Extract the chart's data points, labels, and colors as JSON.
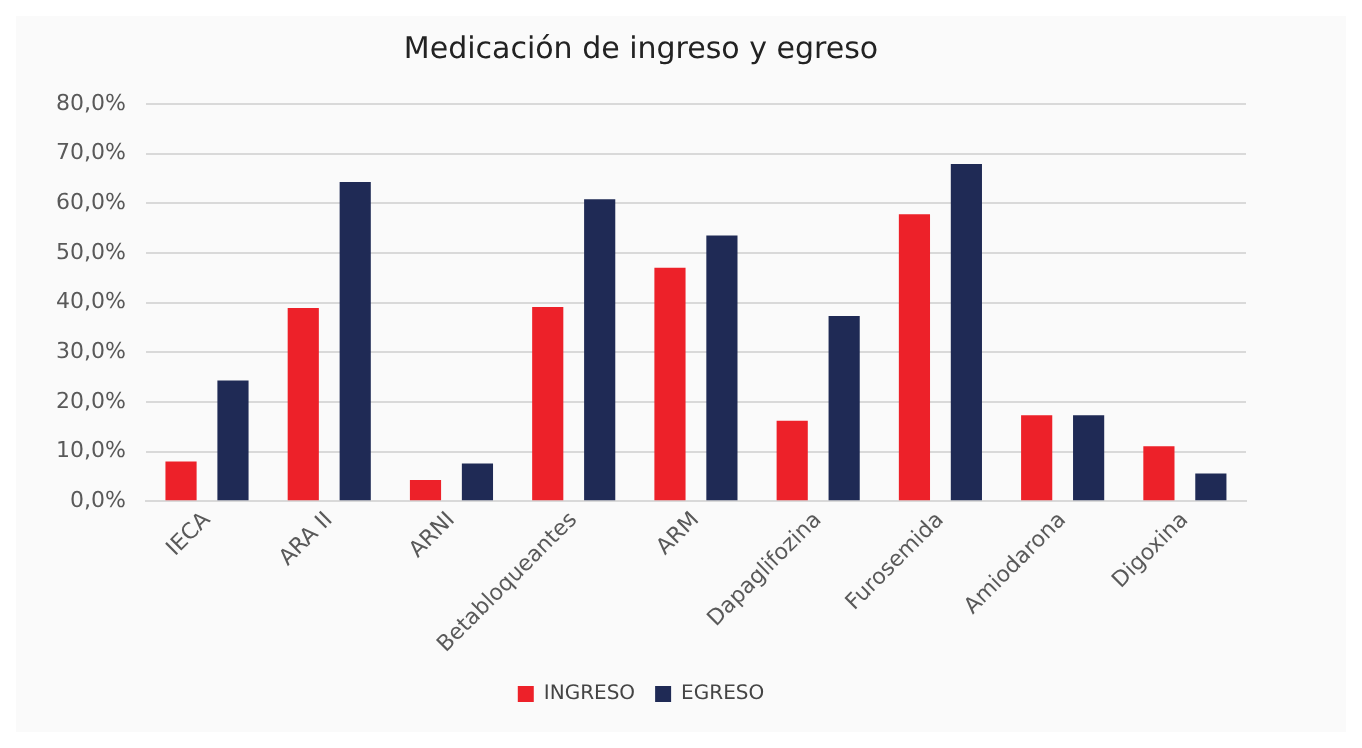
{
  "chart_data": {
    "type": "bar",
    "title": "Medicación de ingreso y egreso",
    "categories": [
      "IECA",
      "ARA II",
      "ARNI",
      "Betabloqueantes",
      "ARM",
      "Dapaglifozina",
      "Furosemida",
      "Amiodarona",
      "Digoxina"
    ],
    "series": [
      {
        "name": "INGRESO",
        "color": "#ed2129",
        "values": [
          8.0,
          38.9,
          4.3,
          39.1,
          47.0,
          16.2,
          57.8,
          17.3,
          11.1
        ]
      },
      {
        "name": "EGRESO",
        "color": "#1f2a55",
        "values": [
          24.3,
          64.3,
          7.6,
          60.8,
          53.5,
          37.3,
          67.9,
          17.3,
          5.6
        ]
      }
    ],
    "ylim": [
      0,
      80
    ],
    "yticks": [
      {
        "value": 0,
        "label": "0,0%"
      },
      {
        "value": 10,
        "label": "10,0%"
      },
      {
        "value": 20,
        "label": "20,0%"
      },
      {
        "value": 30,
        "label": "30,0%"
      },
      {
        "value": 40,
        "label": "40,0%"
      },
      {
        "value": 50,
        "label": "50,0%"
      },
      {
        "value": 60,
        "label": "60,0%"
      },
      {
        "value": 70,
        "label": "70,0%"
      },
      {
        "value": 80,
        "label": "80,0%"
      }
    ],
    "grid": "y",
    "legend": "bottom"
  }
}
